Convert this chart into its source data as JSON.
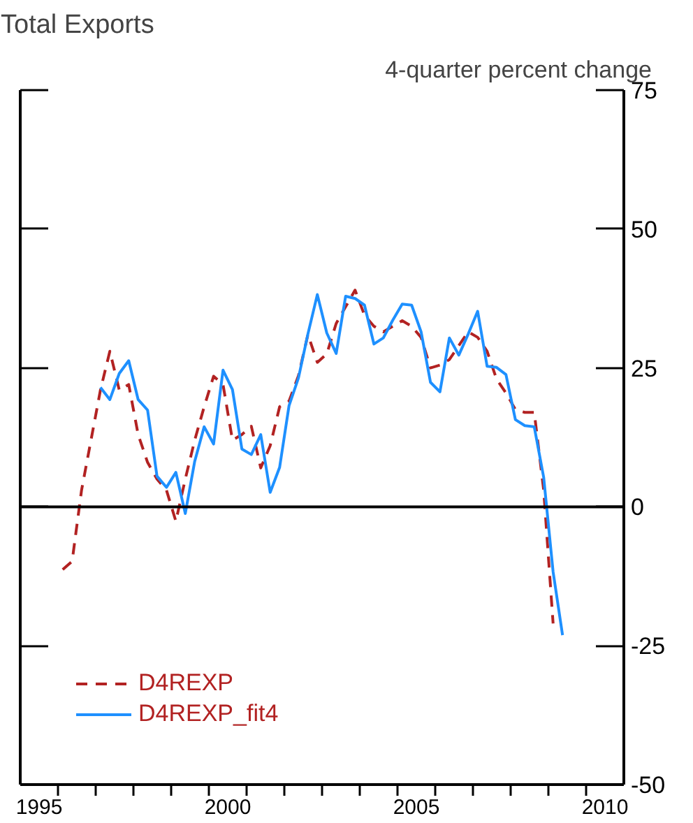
{
  "chart_data": {
    "type": "line",
    "title": "Total Exports",
    "ylabel": "4-quarter percent change",
    "xlim": [
      1995,
      2011
    ],
    "ylim": [
      -50,
      75
    ],
    "xticks": [
      {
        "value": 1995.5,
        "label": "1995"
      },
      {
        "value": 1996,
        "label": null
      },
      {
        "value": 1997,
        "label": null
      },
      {
        "value": 1998,
        "label": null
      },
      {
        "value": 1999,
        "label": null
      },
      {
        "value": 2000,
        "label": null
      },
      {
        "value": 2000.5,
        "label": "2000"
      },
      {
        "value": 2001,
        "label": null
      },
      {
        "value": 2002,
        "label": null
      },
      {
        "value": 2003,
        "label": null
      },
      {
        "value": 2004,
        "label": null
      },
      {
        "value": 2005,
        "label": null
      },
      {
        "value": 2005.5,
        "label": "2005"
      },
      {
        "value": 2006,
        "label": null
      },
      {
        "value": 2007,
        "label": null
      },
      {
        "value": 2008,
        "label": null
      },
      {
        "value": 2009,
        "label": null
      },
      {
        "value": 2010,
        "label": null
      },
      {
        "value": 2010.5,
        "label": "2010"
      }
    ],
    "yticks": [
      -50,
      -25,
      0,
      25,
      50,
      75
    ],
    "ref_lines": [
      {
        "axis": "y",
        "value": 0,
        "color": "#000000"
      }
    ],
    "legend": "bottom left",
    "grid": false,
    "series": [
      {
        "name": "D4REXP",
        "color": "#b22222",
        "line_style": "dashed",
        "x": [
          1996.125,
          1996.375,
          1996.625,
          1996.875,
          1997.125,
          1997.375,
          1997.625,
          1997.875,
          1998.125,
          1998.375,
          1998.625,
          1998.875,
          1999.125,
          1999.375,
          1999.625,
          1999.875,
          2000.125,
          2000.375,
          2000.625,
          2000.875,
          2001.125,
          2001.375,
          2001.625,
          2001.875,
          2002.125,
          2002.375,
          2002.625,
          2002.875,
          2003.125,
          2003.375,
          2003.625,
          2003.875,
          2004.125,
          2004.375,
          2004.625,
          2004.875,
          2005.125,
          2005.375,
          2005.625,
          2005.875,
          2006.125,
          2006.375,
          2006.625,
          2006.875,
          2007.125,
          2007.375,
          2007.625,
          2007.875,
          2008.125,
          2008.375,
          2008.625,
          2008.875,
          2009.125
        ],
        "values": [
          -11.3,
          -9.8,
          3,
          12,
          21,
          28,
          21,
          22,
          13,
          8,
          5,
          3,
          -2.6,
          5,
          12,
          18,
          23.5,
          22,
          12,
          13,
          14.5,
          7,
          11,
          18,
          19,
          23.6,
          31,
          26,
          27.5,
          33,
          36,
          39,
          34.5,
          32.5,
          31.5,
          32.5,
          33.5,
          32.5,
          30.5,
          25,
          25.5,
          26.5,
          29,
          31.5,
          30.5,
          28,
          23,
          20.5,
          17.5,
          17,
          17,
          3,
          -21
        ]
      },
      {
        "name": "D4REXP_fit4",
        "color": "#1e90ff",
        "line_style": "solid",
        "x": [
          1997.125,
          1997.375,
          1997.625,
          1997.875,
          1998.125,
          1998.375,
          1998.625,
          1998.875,
          1999.125,
          1999.375,
          1999.625,
          1999.875,
          2000.125,
          2000.375,
          2000.625,
          2000.875,
          2001.125,
          2001.375,
          2001.625,
          2001.875,
          2002.125,
          2002.375,
          2002.625,
          2002.875,
          2003.125,
          2003.375,
          2003.625,
          2003.875,
          2004.125,
          2004.375,
          2004.625,
          2004.875,
          2005.125,
          2005.375,
          2005.625,
          2005.875,
          2006.125,
          2006.375,
          2006.625,
          2006.875,
          2007.125,
          2007.375,
          2007.625,
          2007.875,
          2008.125,
          2008.375,
          2008.625,
          2008.875,
          2009.125,
          2009.375
        ],
        "values": [
          21.5,
          19.3,
          24.0,
          26.3,
          19.3,
          17.4,
          5.5,
          3.5,
          6.2,
          -1.2,
          8.2,
          14.4,
          11.3,
          24.6,
          21.1,
          10.4,
          9.4,
          13.0,
          2.6,
          7.1,
          18.2,
          23.2,
          31.1,
          38.2,
          31.3,
          27.6,
          37.9,
          37.5,
          36.3,
          29.3,
          30.4,
          33.6,
          36.5,
          36.3,
          31.5,
          22.4,
          20.7,
          30.4,
          27.3,
          31.1,
          35.2,
          25.3,
          25.1,
          23.8,
          15.7,
          14.6,
          14.4,
          5.3,
          -11.7,
          -23.1
        ]
      }
    ]
  }
}
